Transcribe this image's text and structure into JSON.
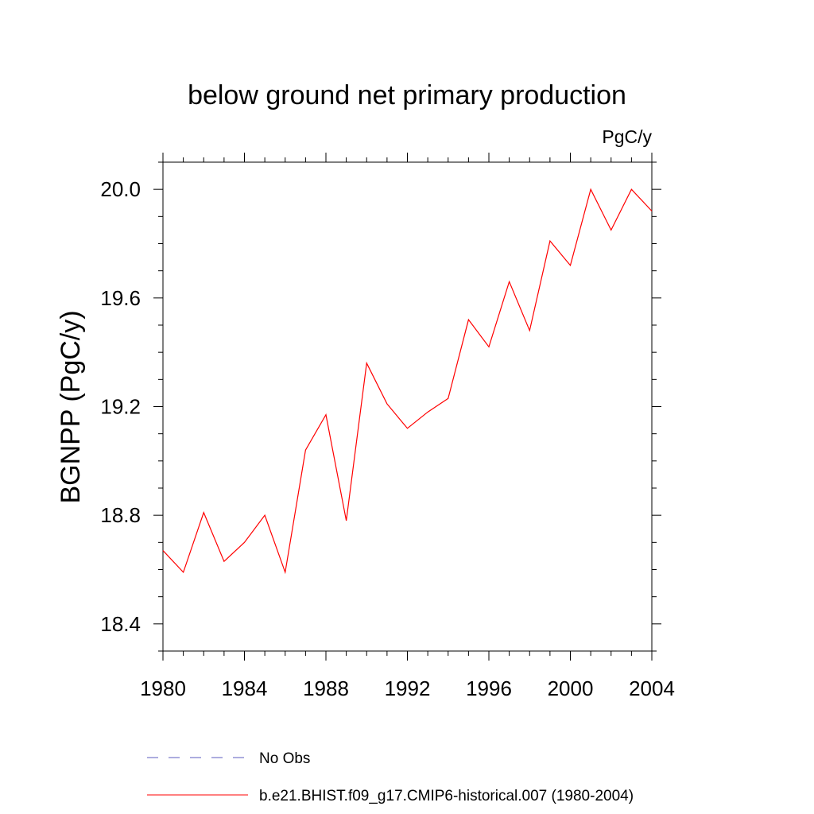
{
  "chart_data": {
    "type": "line",
    "title": "below ground net primary production",
    "units_label": "PgC/y",
    "ylabel": "BGNPP  (PgC/y)",
    "xlabel": "",
    "xlim": [
      1980,
      2004
    ],
    "ylim": [
      18.3,
      20.1
    ],
    "x_ticks": [
      1980,
      1984,
      1988,
      1992,
      1996,
      2000,
      2004
    ],
    "x_tick_labels": [
      "1980",
      "1984",
      "1988",
      "1992",
      "1996",
      "2000",
      "2004"
    ],
    "y_ticks": [
      18.4,
      18.8,
      19.2,
      19.6,
      20.0
    ],
    "y_tick_labels": [
      "18.4",
      "18.8",
      "19.2",
      "19.6",
      "20.0"
    ],
    "grid": false,
    "legend_position": "bottom",
    "legend": [
      {
        "label": "No Obs",
        "color": "#5b5bbf",
        "dash": true
      },
      {
        "label": "b.e21.BHIST.f09_g17.CMIP6-historical.007 (1980-2004)",
        "color": "#ff0000",
        "dash": false
      }
    ],
    "series": [
      {
        "name": "b.e21.BHIST.f09_g17.CMIP6-historical.007 (1980-2004)",
        "color": "#ff0000",
        "x": [
          1980,
          1981,
          1982,
          1983,
          1984,
          1985,
          1986,
          1987,
          1988,
          1989,
          1990,
          1991,
          1992,
          1993,
          1994,
          1995,
          1996,
          1997,
          1998,
          1999,
          2000,
          2001,
          2002,
          2003,
          2004
        ],
        "y": [
          18.67,
          18.59,
          18.81,
          18.63,
          18.7,
          18.8,
          18.59,
          19.04,
          19.17,
          18.78,
          19.36,
          19.21,
          19.12,
          19.18,
          19.23,
          19.52,
          19.42,
          19.66,
          19.48,
          19.81,
          19.72,
          20.0,
          19.85,
          20.0,
          19.92
        ]
      }
    ]
  }
}
